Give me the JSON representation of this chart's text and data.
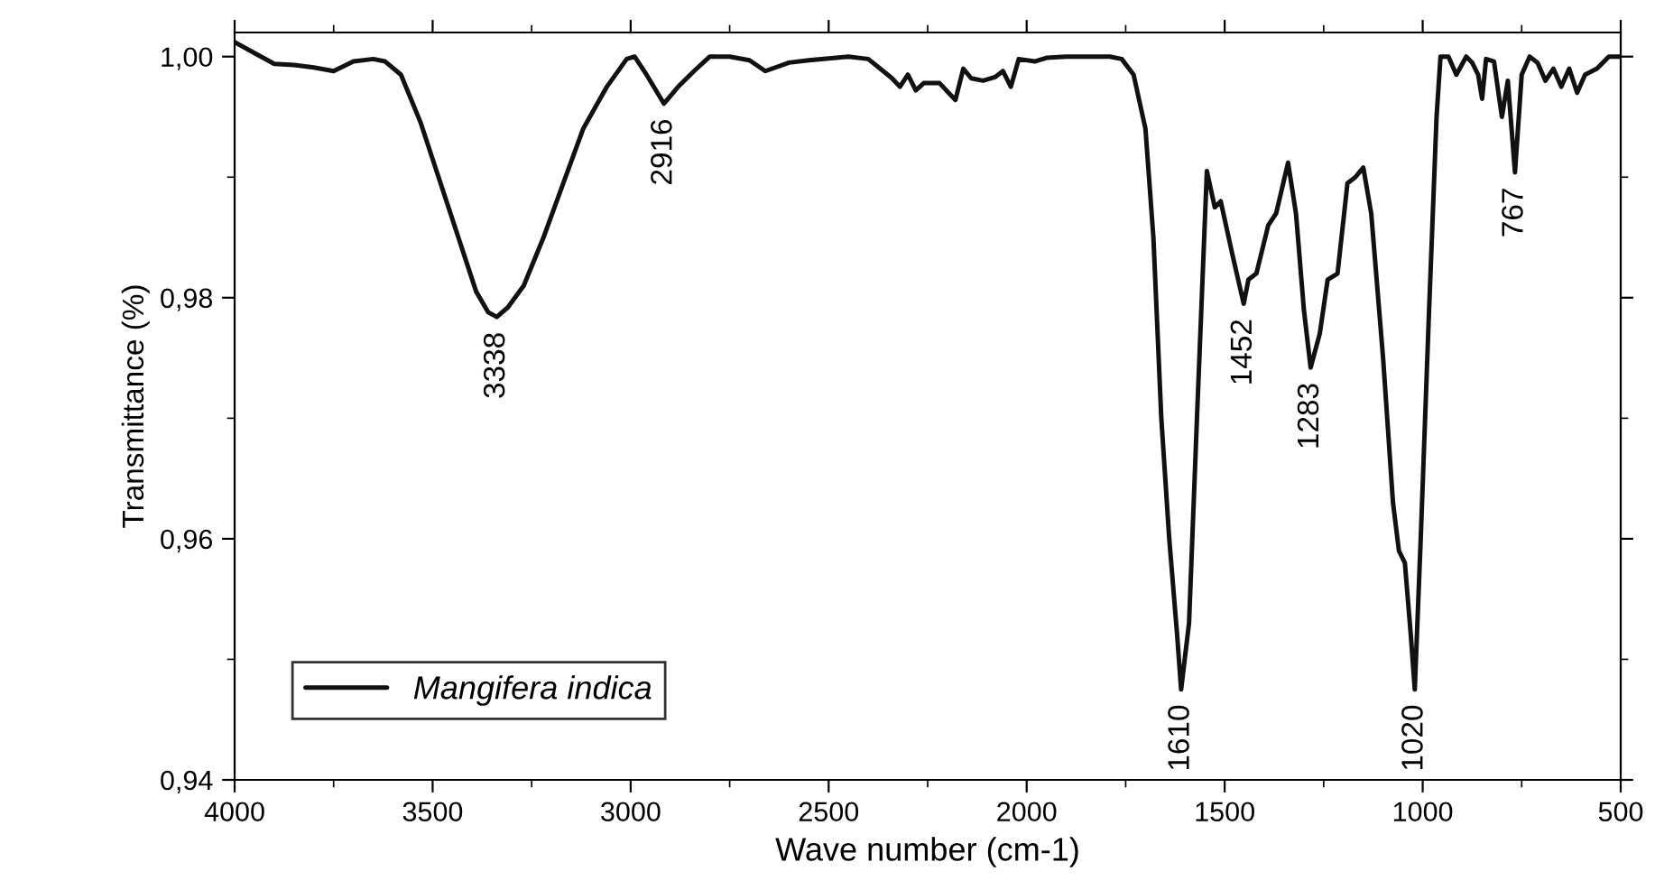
{
  "chart_data": {
    "type": "line",
    "xlabel": "Wave number (cm-1)",
    "ylabel": "Transmittance (%)",
    "xlim": [
      4000,
      500
    ],
    "ylim": [
      0.94,
      1.002
    ],
    "xticks": [
      4000,
      3500,
      3000,
      2500,
      2000,
      1500,
      1000,
      500
    ],
    "yticks": [
      {
        "value": 0.94,
        "label": "0,94"
      },
      {
        "value": 0.96,
        "label": "0,96"
      },
      {
        "value": 0.98,
        "label": "0,98"
      },
      {
        "value": 1.0,
        "label": "1,00"
      }
    ],
    "grid": false,
    "legend": "bottom left",
    "marker": "none",
    "line_style": "solid",
    "series": [
      {
        "name": "Mangifera indica",
        "color": "#111111",
        "x": [
          4000,
          3950,
          3900,
          3850,
          3800,
          3750,
          3700,
          3650,
          3620,
          3580,
          3530,
          3480,
          3430,
          3390,
          3360,
          3338,
          3310,
          3270,
          3220,
          3170,
          3120,
          3060,
          3010,
          2990,
          2960,
          2916,
          2880,
          2840,
          2800,
          2750,
          2700,
          2660,
          2600,
          2550,
          2450,
          2400,
          2370,
          2340,
          2320,
          2300,
          2280,
          2260,
          2220,
          2180,
          2160,
          2140,
          2110,
          2080,
          2060,
          2040,
          2020,
          1980,
          1950,
          1900,
          1850,
          1790,
          1760,
          1730,
          1700,
          1680,
          1660,
          1640,
          1620,
          1610,
          1590,
          1570,
          1545,
          1525,
          1510,
          1480,
          1452,
          1440,
          1420,
          1390,
          1370,
          1340,
          1320,
          1300,
          1283,
          1260,
          1240,
          1215,
          1190,
          1170,
          1150,
          1130,
          1100,
          1075,
          1060,
          1045,
          1030,
          1020,
          1005,
          985,
          965,
          955,
          935,
          915,
          890,
          875,
          860,
          850,
          840,
          820,
          800,
          785,
          767,
          750,
          730,
          710,
          690,
          670,
          650,
          630,
          610,
          590,
          560,
          530,
          500
        ],
        "values": [
          1.0012,
          1.0003,
          0.9994,
          0.9993,
          0.9991,
          0.9988,
          0.9996,
          0.9998,
          0.9996,
          0.9985,
          0.9945,
          0.9895,
          0.9845,
          0.9805,
          0.9788,
          0.9784,
          0.9792,
          0.981,
          0.985,
          0.9895,
          0.994,
          0.9975,
          0.9998,
          1.0,
          0.9985,
          0.9961,
          0.9975,
          0.9988,
          1.0,
          1.0,
          0.9997,
          0.9988,
          0.9995,
          0.9997,
          1.0,
          0.9998,
          0.999,
          0.9982,
          0.9975,
          0.9985,
          0.9972,
          0.9978,
          0.9978,
          0.9964,
          0.999,
          0.9982,
          0.998,
          0.9983,
          0.9988,
          0.9975,
          0.9998,
          0.9996,
          0.9999,
          1.0,
          1.0,
          1.0,
          0.9998,
          0.9985,
          0.994,
          0.985,
          0.97,
          0.96,
          0.952,
          0.9475,
          0.953,
          0.97,
          0.9905,
          0.9875,
          0.988,
          0.9835,
          0.9795,
          0.9815,
          0.982,
          0.986,
          0.987,
          0.9912,
          0.987,
          0.979,
          0.9742,
          0.977,
          0.9815,
          0.982,
          0.9895,
          0.99,
          0.9908,
          0.987,
          0.975,
          0.963,
          0.959,
          0.958,
          0.952,
          0.9475,
          0.96,
          0.978,
          0.995,
          1.0,
          1.0,
          0.9985,
          1.0,
          0.9995,
          0.9985,
          0.9965,
          0.9998,
          0.9996,
          0.995,
          0.998,
          0.9904,
          0.9985,
          1.0,
          0.9995,
          0.998,
          0.999,
          0.9975,
          0.999,
          0.997,
          0.9985,
          0.999,
          1.0,
          1.0
        ]
      }
    ],
    "annotations": [
      {
        "text": "3338",
        "x": 3338,
        "y": 0.9784
      },
      {
        "text": "2916",
        "x": 2916,
        "y": 0.9961
      },
      {
        "text": "1610",
        "x": 1610,
        "y": 0.9475
      },
      {
        "text": "1452",
        "x": 1452,
        "y": 0.9795
      },
      {
        "text": "1283",
        "x": 1283,
        "y": 0.9742
      },
      {
        "text": "1020",
        "x": 1020,
        "y": 0.9475
      },
      {
        "text": "767",
        "x": 767,
        "y": 0.9904
      }
    ]
  }
}
